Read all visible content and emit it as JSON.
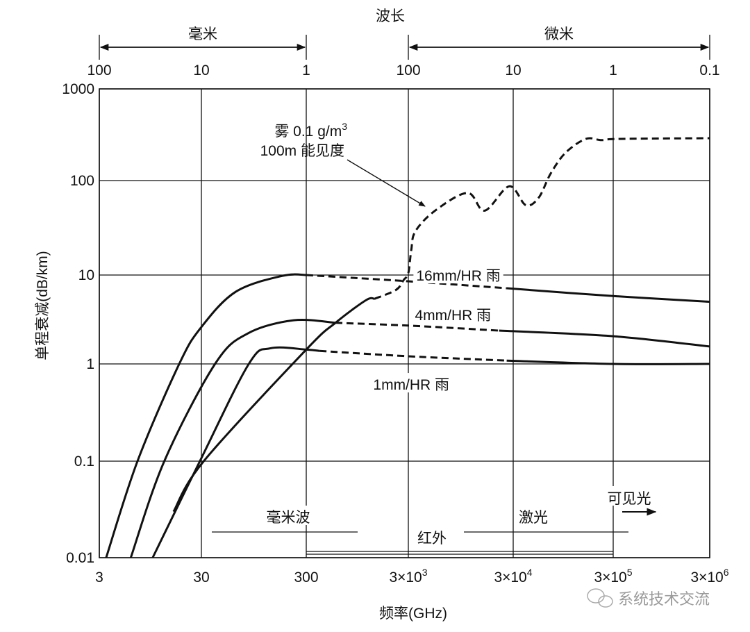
{
  "chart_data": {
    "type": "line",
    "title": "",
    "xlabel": "频率(GHz)",
    "ylabel": "单程衰减(dB/km)",
    "x_scale": "log",
    "y_scale": "log",
    "xlim": [
      3,
      3000000
    ],
    "ylim": [
      0.01,
      1000
    ],
    "grid": true,
    "x_ticks": [
      {
        "value": 3,
        "base": "3",
        "exp": ""
      },
      {
        "value": 30,
        "base": "30",
        "exp": ""
      },
      {
        "value": 300,
        "base": "300",
        "exp": ""
      },
      {
        "value": 3000,
        "base": "3×10",
        "exp": "3"
      },
      {
        "value": 30000,
        "base": "3×10",
        "exp": "4"
      },
      {
        "value": 300000,
        "base": "3×10",
        "exp": "5"
      },
      {
        "value": 3000000,
        "base": "3×10",
        "exp": "6"
      }
    ],
    "y_ticks": [
      {
        "value": 1000,
        "label": "1000"
      },
      {
        "value": 100,
        "label": "100"
      },
      {
        "value": 10,
        "label": "10"
      },
      {
        "value": 1,
        "label": "1"
      },
      {
        "value": 0.1,
        "label": "0.1"
      },
      {
        "value": 0.01,
        "label": "0.01"
      }
    ],
    "top_axis": {
      "title": "波长",
      "ticks": [
        {
          "freq": 3,
          "label": "100"
        },
        {
          "freq": 30,
          "label": "10"
        },
        {
          "freq": 300,
          "label": "1"
        },
        {
          "freq": 3000,
          "label": "100"
        },
        {
          "freq": 30000,
          "label": "10"
        },
        {
          "freq": 300000,
          "label": "1"
        },
        {
          "freq": 3000000,
          "label": "0.1"
        }
      ],
      "ranges": [
        {
          "label": "毫米",
          "from": 3,
          "to": 300
        },
        {
          "label": "微米",
          "from": 3000,
          "to": 3000000
        }
      ]
    },
    "series": [
      {
        "name": "16mm/HR 雨",
        "label_at": [
          9000,
          10
        ],
        "segments": [
          {
            "style": "solid",
            "points": [
              [
                3.5,
                0.01
              ],
              [
                7.1,
                0.1
              ],
              [
                18.2,
                1
              ],
              [
                30,
                2.6
              ],
              [
                64,
                6.5
              ],
              [
                178,
                9.8
              ],
              [
                300,
                10
              ]
            ]
          },
          {
            "style": "dashed",
            "points": [
              [
                300,
                10
              ],
              [
                3000,
                8.5
              ],
              [
                26000,
                7.1
              ]
            ]
          },
          {
            "style": "solid",
            "points": [
              [
                26000,
                7.1
              ],
              [
                300000,
                5.8
              ],
              [
                3000000,
                5.0
              ]
            ]
          }
        ]
      },
      {
        "name": "4mm/HR 雨",
        "label_at": [
          8000,
          3.6
        ],
        "segments": [
          {
            "style": "solid",
            "points": [
              [
                6.1,
                0.01
              ],
              [
                13,
                0.1
              ],
              [
                40.5,
                1
              ],
              [
                83,
                2.2
              ],
              [
                228,
                3.1
              ],
              [
                580,
                2.9
              ]
            ]
          },
          {
            "style": "dashed",
            "points": [
              [
                580,
                2.9
              ],
              [
                3000,
                2.7
              ],
              [
                22000,
                2.37
              ]
            ]
          },
          {
            "style": "solid",
            "points": [
              [
                22000,
                2.37
              ],
              [
                300000,
                2.05
              ],
              [
                3000000,
                1.57
              ]
            ]
          }
        ]
      },
      {
        "name": "1mm/HR 雨",
        "label_at": [
          3200,
          0.62
        ],
        "segments": [
          {
            "style": "solid",
            "points": [
              [
                10,
                0.01
              ],
              [
                29,
                0.1
              ],
              [
                85,
                1
              ],
              [
                137,
                1.5
              ],
              [
                300,
                1.45
              ],
              [
                405,
                1.4
              ]
            ]
          },
          {
            "style": "dashed",
            "points": [
              [
                405,
                1.4
              ],
              [
                3000,
                1.22
              ],
              [
                26000,
                1.09
              ]
            ]
          },
          {
            "style": "solid",
            "points": [
              [
                26000,
                1.09
              ],
              [
                300000,
                1.0
              ],
              [
                3000000,
                1.0
              ]
            ]
          }
        ]
      },
      {
        "annotation": [
          "雾 0.1 g/m",
          "3",
          "100m 能见度"
        ],
        "segments": [
          {
            "style": "solid",
            "points": [
              [
                16,
                0.03
              ],
              [
                31.6,
                0.1
              ],
              [
                300,
                1.45
              ],
              [
                580,
                2.9
              ],
              [
                1150,
                5.2
              ],
              [
                1400,
                5.4
              ]
            ]
          },
          {
            "style": "dashed",
            "points": [
              [
                1400,
                5.4
              ],
              [
                2270,
                6.8
              ],
              [
                2700,
                8.8
              ],
              [
                3000,
                10.5
              ],
              [
                3200,
                18.4
              ],
              [
                3500,
                29
              ],
              [
                5400,
                48
              ],
              [
                11000,
                74
              ],
              [
                16000,
                48
              ],
              [
                27500,
                87
              ],
              [
                40000,
                55
              ],
              [
                54000,
                66
              ],
              [
                71000,
                119
              ],
              [
                100000,
                201
              ],
              [
                160000,
                285
              ],
              [
                230000,
                276
              ],
              [
                350000,
                285
              ],
              [
                3000000,
                290
              ]
            ]
          }
        ]
      }
    ],
    "bands": [
      {
        "label": "毫米波",
        "from": 35,
        "to": 1300
      },
      {
        "label": "红外",
        "from": 300,
        "to": 300000
      },
      {
        "label": "激光",
        "from": 7000,
        "to": 700000
      },
      {
        "label": "可见光",
        "arrow": "right"
      }
    ],
    "watermark": "系统技术交流"
  }
}
